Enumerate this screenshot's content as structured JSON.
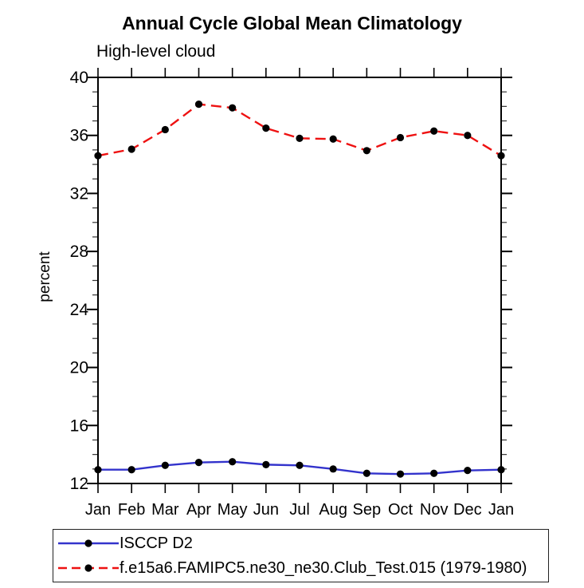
{
  "chart_data": {
    "type": "line",
    "title": "Annual Cycle Global Mean Climatology",
    "subtitle": "High-level cloud",
    "ylabel": "percent",
    "xlabel": "",
    "categories": [
      "Jan",
      "Feb",
      "Mar",
      "Apr",
      "May",
      "Jun",
      "Jul",
      "Aug",
      "Sep",
      "Oct",
      "Nov",
      "Dec",
      "Jan"
    ],
    "ylim": [
      12,
      40
    ],
    "yticks_major": [
      12,
      16,
      20,
      24,
      28,
      32,
      36,
      40
    ],
    "ytick_minor_step": 1,
    "grid": false,
    "legend_position": "bottom-left",
    "series": [
      {
        "name": "ISCCP D2",
        "color": "#3333cc",
        "style": "solid",
        "marker": "filled-circle",
        "marker_color": "#000000",
        "values": [
          12.95,
          12.95,
          13.25,
          13.45,
          13.5,
          13.3,
          13.25,
          13.0,
          12.7,
          12.65,
          12.7,
          12.9,
          12.95
        ]
      },
      {
        "name": "f.e15a6.FAMIPC5.ne30_ne30.Club_Test.015 (1979-1980)",
        "color": "#ee1111",
        "style": "dashed",
        "marker": "filled-circle",
        "marker_color": "#000000",
        "values": [
          34.6,
          35.05,
          36.4,
          38.15,
          37.9,
          36.5,
          35.8,
          35.75,
          34.95,
          35.85,
          36.3,
          36.0,
          34.6
        ]
      }
    ],
    "colors": {
      "axis": "#000000",
      "text": "#000000",
      "background": "#ffffff"
    }
  }
}
